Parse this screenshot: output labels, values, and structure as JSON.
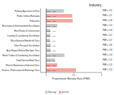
{
  "chart_data": {
    "type": "bar",
    "orientation": "horizontal",
    "title": "Industry",
    "xlabel": "Proportionate Mortality Ratio (PMR)",
    "categories": [
      "Finance, Professional & Brokerage Svcs",
      "Plant & Maintenance/Industrial Svcs",
      "Food Service/Hotel Svcs",
      "Retail Trades & Distributing Svcs/Indust",
      "Auto Repair/Vehicle/Not Spec Svcs",
      "Other Personal Svcs/Indust",
      "Miscellaneous/Handicraft Svcs",
      "Laundry & Laundering Svcs/Indust",
      "Real Estate & Construction",
      "Recreation & Entertainment/Svcs/Indust",
      "Fabricants",
      "Public Utilities/Railroads",
      "Primary Agriculture & Fore"
    ],
    "series": [
      {
        "name": "Non-sig",
        "color": "#c8c8c8",
        "values": [
          null,
          null,
          1.16,
          1.33,
          1.08,
          1.083,
          1.07,
          1.075,
          1.076,
          1.2,
          null,
          null,
          1.32
        ],
        "value_labels": [
          null,
          null,
          "PMR = 1.16",
          "PMR = 1.33",
          "PMR = 1.08",
          "PMR = 1.08",
          "PMR = 1.07",
          "PMR = 1.07",
          "PMR = 1.08",
          "PMR = 1.20",
          null,
          null,
          "PMR = 1.32"
        ]
      },
      {
        "name": "p<0.01",
        "color": "#f4a5a0",
        "values": [
          1.54,
          1.2,
          null,
          null,
          null,
          null,
          null,
          null,
          null,
          null,
          1.48,
          1.47,
          null
        ],
        "value_labels": [
          "PMR = 1.54",
          "PMR = 1.20",
          null,
          null,
          null,
          null,
          null,
          null,
          null,
          null,
          "PMR = 1.48",
          "PMR = 1.47",
          null
        ]
      }
    ],
    "baseline": 1.0,
    "xlim": [
      0.9,
      2.0
    ],
    "xticks": [
      1,
      1.5,
      2
    ],
    "data_labels": true,
    "grid": false,
    "legend": "bottom"
  }
}
